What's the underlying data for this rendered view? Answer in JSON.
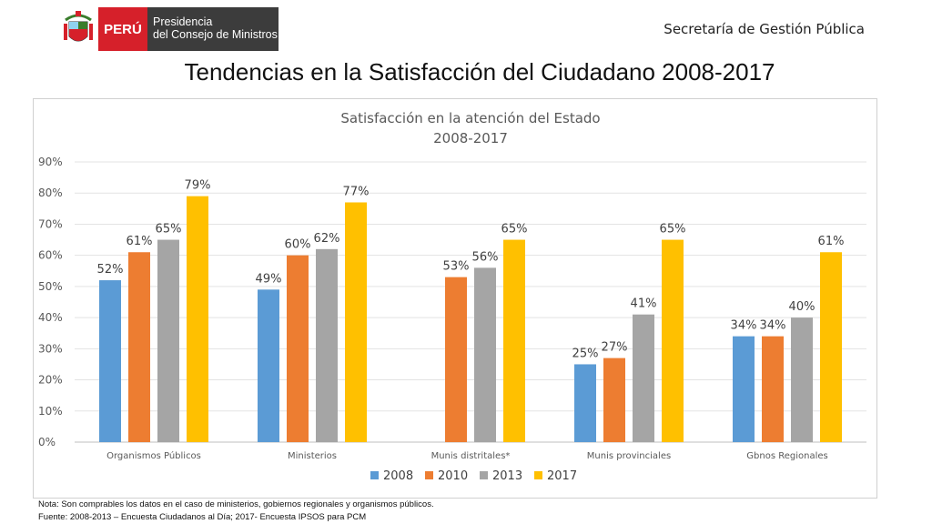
{
  "header": {
    "logo_country": "PERÚ",
    "logo_line1": "Presidencia",
    "logo_line2": "del Consejo de Ministros",
    "secretaria": "Secretaría de Gestión Pública",
    "title": "Tendencias en la Satisfacción del Ciudadano 2008-2017"
  },
  "chart_data": {
    "type": "bar",
    "title": "Satisfacción en la atención del Estado",
    "subtitle": "2008-2017",
    "categories": [
      "Organismos Públicos",
      "Ministerios",
      "Munis distritales*",
      "Munis provinciales",
      "Gbnos Regionales"
    ],
    "series": [
      {
        "name": "2008",
        "color": "#5b9bd5",
        "values": [
          52,
          49,
          null,
          25,
          34
        ]
      },
      {
        "name": "2010",
        "color": "#ed7d31",
        "values": [
          61,
          60,
          53,
          27,
          34
        ]
      },
      {
        "name": "2013",
        "color": "#a5a5a5",
        "values": [
          65,
          62,
          56,
          41,
          40
        ]
      },
      {
        "name": "2017",
        "color": "#ffc000",
        "values": [
          79,
          77,
          65,
          65,
          61
        ]
      }
    ],
    "ylim": [
      0,
      90
    ],
    "yticks": [
      "0%",
      "10%",
      "20%",
      "30%",
      "40%",
      "50%",
      "60%",
      "70%",
      "80%",
      "90%"
    ],
    "value_suffix": "%",
    "grid": true,
    "legend_position": "bottom"
  },
  "footer": {
    "note": "Nota: Son comprables los datos en el caso de ministerios, gobiernos regionales y organismos públicos.",
    "source": "Fuente: 2008-2013 – Encuesta Ciudadanos al Día; 2017- Encuesta IPSOS para PCM"
  }
}
